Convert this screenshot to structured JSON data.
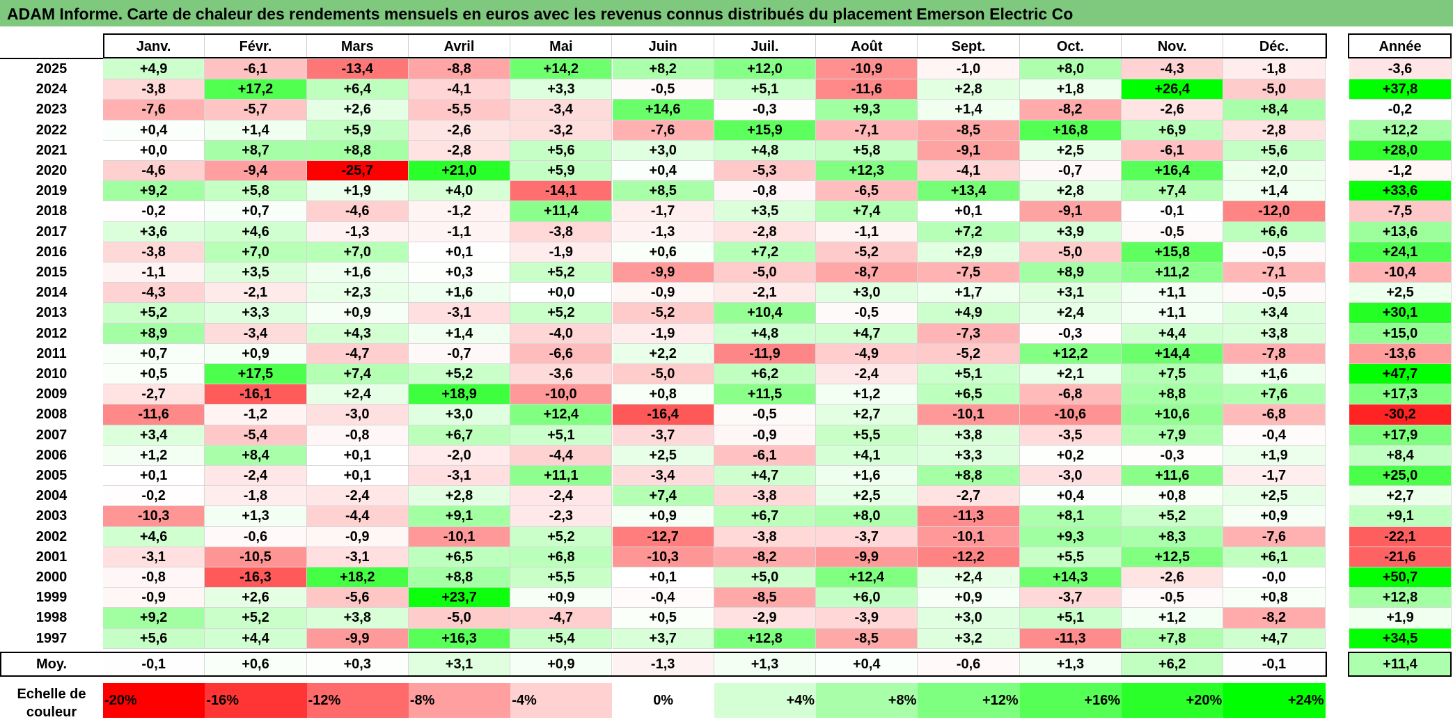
{
  "title": "ADAM Informe. Carte de chaleur des rendements mensuels en euros avec les revenus connus distribués du placement Emerson Electric Co",
  "chart_data": {
    "type": "heatmap",
    "title": "ADAM Informe. Carte de chaleur des rendements mensuels en euros avec les revenus connus distribués du placement Emerson Electric Co",
    "columns": [
      "Janv.",
      "Févr.",
      "Mars",
      "Avril",
      "Mai",
      "Juin",
      "Juil.",
      "Août",
      "Sept.",
      "Oct.",
      "Nov.",
      "Déc."
    ],
    "annual_header": "Année",
    "rows": [
      {
        "year": "2025",
        "values": [
          4.9,
          -6.1,
          -13.4,
          -8.8,
          14.2,
          8.2,
          12.0,
          -10.9,
          -1.0,
          8.0,
          -4.3,
          -1.8
        ],
        "annual": -3.6
      },
      {
        "year": "2024",
        "values": [
          -3.8,
          17.2,
          6.4,
          -4.1,
          3.3,
          -0.5,
          5.1,
          -11.6,
          2.8,
          1.8,
          26.4,
          -5.0
        ],
        "annual": 37.8
      },
      {
        "year": "2023",
        "values": [
          -7.6,
          -5.7,
          2.6,
          -5.5,
          -3.4,
          14.6,
          -0.3,
          9.3,
          1.4,
          -8.2,
          -2.6,
          8.4
        ],
        "annual": -0.2
      },
      {
        "year": "2022",
        "values": [
          0.4,
          1.4,
          5.9,
          -2.6,
          -3.2,
          -7.6,
          15.9,
          -7.1,
          -8.5,
          16.8,
          6.9,
          -2.8
        ],
        "annual": 12.2
      },
      {
        "year": "2021",
        "values": [
          0.0,
          8.7,
          8.8,
          -2.8,
          5.6,
          3.0,
          4.8,
          5.8,
          -9.1,
          2.5,
          -6.1,
          5.6
        ],
        "annual": 28.0
      },
      {
        "year": "2020",
        "values": [
          -4.6,
          -9.4,
          -25.7,
          21.0,
          5.9,
          0.4,
          -5.3,
          12.3,
          -4.1,
          -0.7,
          16.4,
          2.0
        ],
        "annual": -1.2
      },
      {
        "year": "2019",
        "values": [
          9.2,
          5.8,
          1.9,
          4.0,
          -14.1,
          8.5,
          -0.8,
          -6.5,
          13.4,
          2.8,
          7.4,
          1.4
        ],
        "annual": 33.6
      },
      {
        "year": "2018",
        "values": [
          -0.2,
          0.7,
          -4.6,
          -1.2,
          11.4,
          -1.7,
          3.5,
          7.4,
          0.1,
          -9.1,
          -0.1,
          -12.0
        ],
        "annual": -7.5
      },
      {
        "year": "2017",
        "values": [
          3.6,
          4.6,
          -1.3,
          -1.1,
          -3.8,
          -1.3,
          -2.8,
          -1.1,
          7.2,
          3.9,
          -0.5,
          6.6
        ],
        "annual": 13.6
      },
      {
        "year": "2016",
        "values": [
          -3.8,
          7.0,
          7.0,
          0.1,
          -1.9,
          0.6,
          7.2,
          -5.2,
          2.9,
          -5.0,
          15.8,
          -0.5
        ],
        "annual": 24.1
      },
      {
        "year": "2015",
        "values": [
          -1.1,
          3.5,
          1.6,
          0.3,
          5.2,
          -9.9,
          -5.0,
          -8.7,
          -7.5,
          8.9,
          11.2,
          -7.1
        ],
        "annual": -10.4
      },
      {
        "year": "2014",
        "values": [
          -4.3,
          -2.1,
          2.3,
          1.6,
          0.0,
          -0.9,
          -2.1,
          3.0,
          1.7,
          3.1,
          1.1,
          -0.5
        ],
        "annual": 2.5
      },
      {
        "year": "2013",
        "values": [
          5.2,
          3.3,
          0.9,
          -3.1,
          5.2,
          -5.2,
          10.4,
          -0.5,
          4.9,
          2.4,
          1.1,
          3.4
        ],
        "annual": 30.1
      },
      {
        "year": "2012",
        "values": [
          8.9,
          -3.4,
          4.3,
          1.4,
          -4.0,
          -1.9,
          4.8,
          4.7,
          -7.3,
          -0.3,
          4.4,
          3.8
        ],
        "annual": 15.0
      },
      {
        "year": "2011",
        "values": [
          0.7,
          0.9,
          -4.7,
          -0.7,
          -6.6,
          2.2,
          -11.9,
          -4.9,
          -5.2,
          12.2,
          14.4,
          -7.8
        ],
        "annual": -13.6
      },
      {
        "year": "2010",
        "values": [
          0.5,
          17.5,
          7.4,
          5.2,
          -3.6,
          -5.0,
          6.2,
          -2.4,
          5.1,
          2.1,
          7.5,
          1.6
        ],
        "annual": 47.7
      },
      {
        "year": "2009",
        "values": [
          -2.7,
          -16.1,
          2.4,
          18.9,
          -10.0,
          0.8,
          11.5,
          1.2,
          6.5,
          -6.8,
          8.8,
          7.6
        ],
        "annual": 17.3
      },
      {
        "year": "2008",
        "values": [
          -11.6,
          -1.2,
          -3.0,
          3.0,
          12.4,
          -16.4,
          -0.5,
          2.7,
          -10.1,
          -10.6,
          10.6,
          -6.8
        ],
        "annual": -30.2
      },
      {
        "year": "2007",
        "values": [
          3.4,
          -5.4,
          -0.8,
          6.7,
          5.1,
          -3.7,
          -0.9,
          5.5,
          3.8,
          -3.5,
          7.9,
          -0.4
        ],
        "annual": 17.9
      },
      {
        "year": "2006",
        "values": [
          1.2,
          8.4,
          0.1,
          -2.0,
          -4.4,
          2.5,
          -6.1,
          4.1,
          3.3,
          0.2,
          -0.3,
          1.9
        ],
        "annual": 8.4
      },
      {
        "year": "2005",
        "values": [
          0.1,
          -2.4,
          0.1,
          -3.1,
          11.1,
          -3.4,
          4.7,
          1.6,
          8.8,
          -3.0,
          11.6,
          -1.7
        ],
        "annual": 25.0
      },
      {
        "year": "2004",
        "values": [
          -0.2,
          -1.8,
          -2.4,
          2.8,
          -2.4,
          7.4,
          -3.8,
          2.5,
          -2.7,
          0.4,
          0.8,
          2.5
        ],
        "annual": 2.7
      },
      {
        "year": "2003",
        "values": [
          -10.3,
          1.3,
          -4.4,
          9.1,
          -2.3,
          0.9,
          6.7,
          8.0,
          -11.3,
          8.1,
          5.2,
          0.9
        ],
        "annual": 9.1
      },
      {
        "year": "2002",
        "values": [
          4.6,
          -0.6,
          -0.9,
          -10.1,
          5.2,
          -12.7,
          -3.8,
          -3.7,
          -10.1,
          9.3,
          8.3,
          -7.6
        ],
        "annual": -22.1
      },
      {
        "year": "2001",
        "values": [
          -3.1,
          -10.5,
          -3.1,
          6.5,
          6.8,
          -10.3,
          -8.2,
          -9.9,
          -12.2,
          5.5,
          12.5,
          6.1
        ],
        "annual": -21.6
      },
      {
        "year": "2000",
        "values": [
          -0.8,
          -16.3,
          18.2,
          8.8,
          5.5,
          0.1,
          5.0,
          12.4,
          2.4,
          14.3,
          -2.6,
          -0.0
        ],
        "annual": 50.7
      },
      {
        "year": "1999",
        "values": [
          -0.9,
          2.6,
          -5.6,
          23.7,
          0.9,
          -0.4,
          -8.5,
          6.0,
          0.9,
          -3.7,
          -0.5,
          0.8
        ],
        "annual": 12.8
      },
      {
        "year": "1998",
        "values": [
          9.2,
          5.2,
          3.8,
          -5.0,
          -4.7,
          0.5,
          -2.9,
          -3.9,
          3.0,
          5.1,
          1.2,
          -8.2
        ],
        "annual": 1.9
      },
      {
        "year": "1997",
        "values": [
          5.6,
          4.4,
          -9.9,
          16.3,
          5.4,
          3.7,
          12.8,
          -8.5,
          3.2,
          -11.3,
          7.8,
          4.7
        ],
        "annual": 34.5
      }
    ],
    "average": {
      "label": "Moy.",
      "values": [
        -0.1,
        0.6,
        0.3,
        3.1,
        0.9,
        -1.3,
        1.3,
        0.4,
        -0.6,
        1.3,
        6.2,
        -0.1
      ],
      "annual": 11.4
    },
    "color_scale": {
      "label": "Echelle de couleur",
      "stops": [
        {
          "label": "-20%",
          "color": "#ff0000"
        },
        {
          "label": "-16%",
          "color": "#ff3535"
        },
        {
          "label": "-12%",
          "color": "#ff6a6a"
        },
        {
          "label": "-8%",
          "color": "#ff9f9f"
        },
        {
          "label": "-4%",
          "color": "#ffd1d1"
        },
        {
          "label": "0%",
          "color": "#ffffff"
        },
        {
          "label": "+4%",
          "color": "#d4ffd4"
        },
        {
          "label": "+8%",
          "color": "#a9ffa9"
        },
        {
          "label": "+12%",
          "color": "#7fff7f"
        },
        {
          "label": "+16%",
          "color": "#55ff55"
        },
        {
          "label": "+20%",
          "color": "#2aff2a"
        },
        {
          "label": "+24%",
          "color": "#00ff00"
        }
      ]
    },
    "colors": {
      "negative": "#ff0000",
      "neutral": "#ffffff",
      "positive": "#00ff00",
      "title_bar": "#7fc97f"
    }
  }
}
